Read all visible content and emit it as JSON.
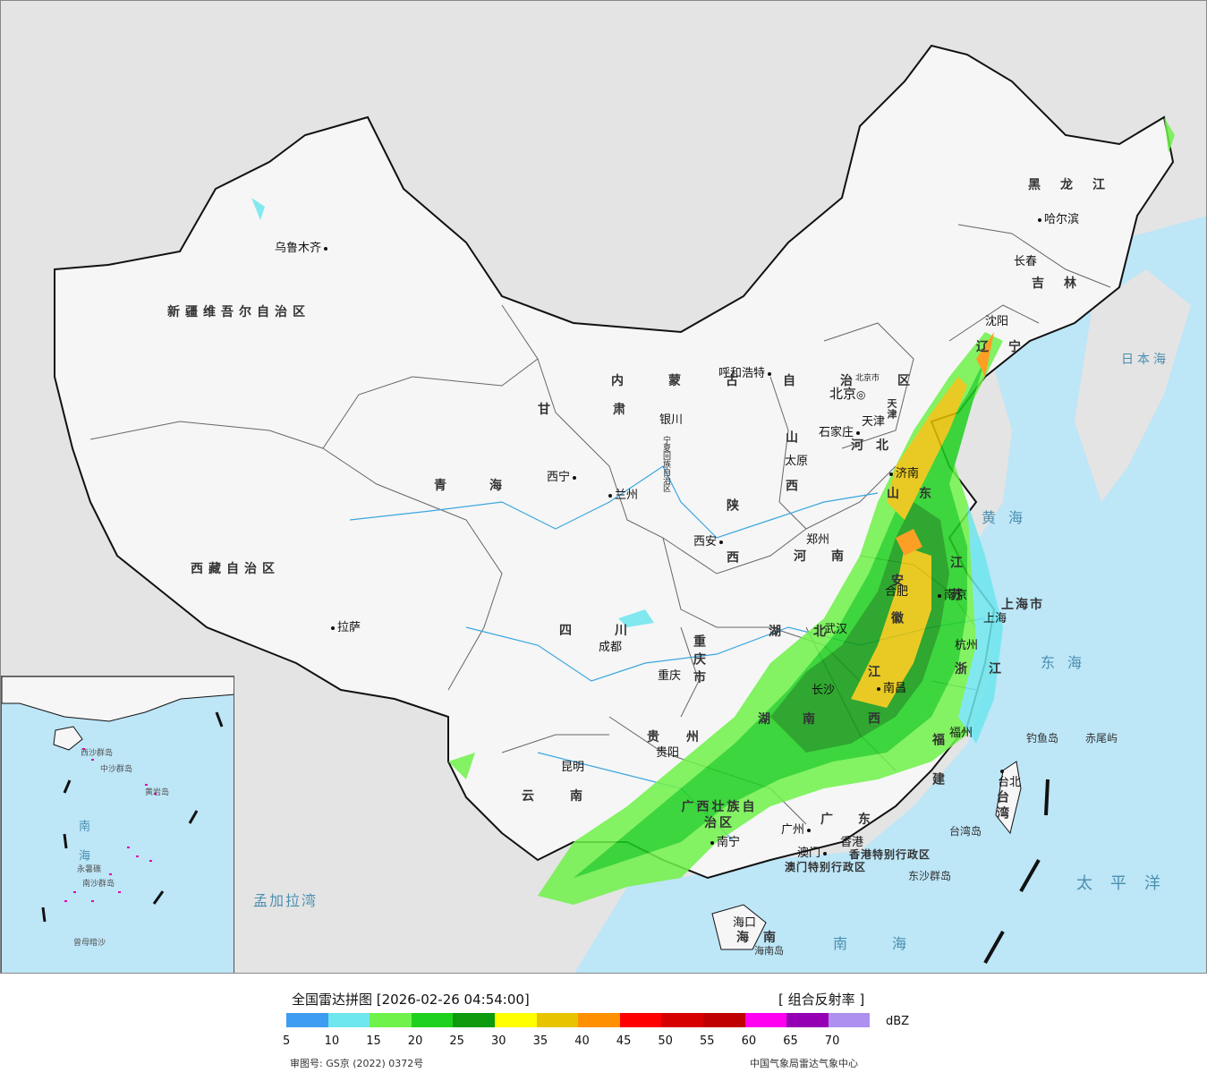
{
  "legend": {
    "title": "全国雷达拼图 [2026-02-26 04:54:00]",
    "product": "[ 组合反射率 ]",
    "unit": "dBZ",
    "colors": [
      "#3d9df0",
      "#6ee6ee",
      "#6ff24a",
      "#1fd11f",
      "#0e9a0e",
      "#ffff00",
      "#e7c300",
      "#ff9000",
      "#ff0000",
      "#d60000",
      "#c00000",
      "#ff00f0",
      "#9600b4",
      "#ad90f0"
    ],
    "ticks": [
      "5",
      "10",
      "15",
      "20",
      "25",
      "30",
      "35",
      "40",
      "45",
      "50",
      "55",
      "60",
      "65",
      "70"
    ],
    "approval": "审图号: GS京 (2022) 0372号",
    "agency": "中国气象局雷达气象中心"
  },
  "map": {
    "provinces": [
      "新疆维吾尔自治区",
      "西藏自治区",
      "青海",
      "甘肃",
      "内蒙古自治区",
      "黑龙江",
      "吉林",
      "辽宁",
      "河北",
      "山西",
      "陕西",
      "河南",
      "山东",
      "江苏",
      "安徽",
      "湖北",
      "四川",
      "重庆市",
      "湖南",
      "江西",
      "浙江",
      "福建",
      "贵州",
      "云南",
      "广西壮族自治区",
      "广东",
      "海南",
      "台湾",
      "上海市",
      "宁夏回族自治区",
      "北京市",
      "天津"
    ],
    "cities": [
      "乌鲁木齐",
      "拉萨",
      "西宁",
      "兰州",
      "银川",
      "呼和浩特",
      "北京",
      "天津",
      "石家庄",
      "太原",
      "西安",
      "郑州",
      "济南",
      "南京",
      "合肥",
      "上海",
      "杭州",
      "武汉",
      "成都",
      "重庆",
      "长沙",
      "南昌",
      "福州",
      "台北",
      "贵阳",
      "昆明",
      "南宁",
      "广州",
      "香港",
      "澳门",
      "海口",
      "沈阳",
      "长春",
      "哈尔滨"
    ],
    "seas": [
      "日本海",
      "黄海",
      "东海",
      "太平洋",
      "南海",
      "孟加拉湾"
    ],
    "islands": [
      "钓鱼岛",
      "赤尾屿",
      "台湾岛",
      "东沙群岛",
      "海南岛",
      "香港特别行政区",
      "澳门特别行政区"
    ],
    "inset_labels": [
      "南海",
      "中沙群岛",
      "西沙群岛",
      "南沙群岛",
      "曾母暗沙",
      "黄岩岛",
      "永暑礁"
    ]
  }
}
